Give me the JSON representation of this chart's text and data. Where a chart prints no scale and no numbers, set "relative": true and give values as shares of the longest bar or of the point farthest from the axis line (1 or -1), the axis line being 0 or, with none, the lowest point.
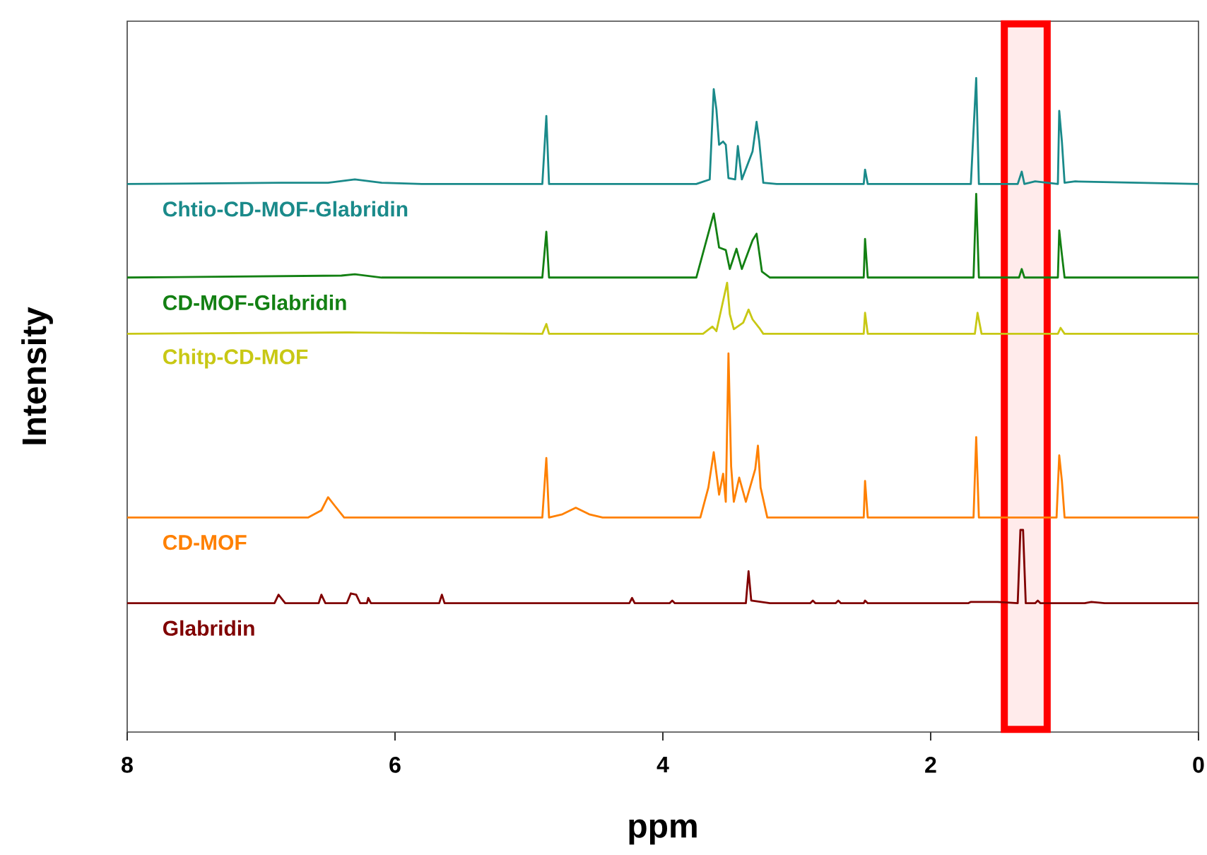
{
  "chart_data": {
    "type": "line",
    "relative": true,
    "xlabel": "ppm",
    "ylabel": "Intensity",
    "xlim": [
      8,
      0
    ],
    "xticks": [
      8,
      6,
      4,
      2,
      0
    ],
    "bands": [
      {
        "axis": "x",
        "from": 1.45,
        "to": 1.13,
        "color": "#ff0000"
      }
    ],
    "series": [
      {
        "name": "Chtio-CD-MOF-Glabridin",
        "color": "#1a8a8a",
        "x": [
          8.0,
          6.85,
          6.5,
          6.3,
          6.1,
          5.8,
          4.9,
          4.87,
          4.85,
          3.75,
          3.65,
          3.62,
          3.6,
          3.58,
          3.55,
          3.53,
          3.51,
          3.46,
          3.44,
          3.41,
          3.33,
          3.3,
          3.28,
          3.25,
          3.15,
          2.5,
          2.49,
          2.47,
          1.7,
          1.66,
          1.64,
          1.35,
          1.32,
          1.3,
          1.22,
          1.05,
          1.04,
          1.02,
          1.0,
          0.92,
          0.0
        ],
        "values": [
          0.838,
          0.84,
          0.84,
          0.845,
          0.84,
          0.838,
          0.838,
          0.942,
          0.838,
          0.838,
          0.845,
          0.983,
          0.952,
          0.898,
          0.903,
          0.898,
          0.847,
          0.845,
          0.896,
          0.845,
          0.888,
          0.933,
          0.903,
          0.84,
          0.838,
          0.838,
          0.86,
          0.838,
          0.838,
          1.0,
          0.838,
          0.838,
          0.857,
          0.838,
          0.842,
          0.838,
          0.95,
          0.903,
          0.84,
          0.842,
          0.838
        ]
      },
      {
        "name": "CD-MOF-Glabridin",
        "color": "#138013",
        "x": [
          8.0,
          6.4,
          6.3,
          6.1,
          4.9,
          4.87,
          4.85,
          3.75,
          3.62,
          3.58,
          3.53,
          3.5,
          3.45,
          3.41,
          3.33,
          3.3,
          3.26,
          3.2,
          2.5,
          2.49,
          2.47,
          1.68,
          1.66,
          1.64,
          1.34,
          1.32,
          1.3,
          1.05,
          1.04,
          1.02,
          1.0,
          0.0
        ],
        "values": [
          0.695,
          0.698,
          0.7,
          0.695,
          0.695,
          0.765,
          0.695,
          0.695,
          0.793,
          0.741,
          0.737,
          0.708,
          0.739,
          0.708,
          0.752,
          0.762,
          0.704,
          0.695,
          0.695,
          0.754,
          0.695,
          0.695,
          0.823,
          0.695,
          0.695,
          0.708,
          0.695,
          0.695,
          0.767,
          0.73,
          0.695,
          0.695
        ]
      },
      {
        "name": "Chitp-CD-MOF",
        "color": "#c8c814",
        "x": [
          8.0,
          6.35,
          4.9,
          4.87,
          4.85,
          3.7,
          3.63,
          3.6,
          3.52,
          3.5,
          3.47,
          3.4,
          3.36,
          3.33,
          3.28,
          3.25,
          2.5,
          2.49,
          2.47,
          1.67,
          1.65,
          1.62,
          1.05,
          1.03,
          1.0,
          0.0
        ],
        "values": [
          0.609,
          0.611,
          0.609,
          0.624,
          0.609,
          0.609,
          0.62,
          0.613,
          0.687,
          0.639,
          0.616,
          0.626,
          0.646,
          0.631,
          0.618,
          0.609,
          0.609,
          0.641,
          0.609,
          0.609,
          0.641,
          0.609,
          0.609,
          0.618,
          0.609,
          0.609
        ]
      },
      {
        "name": "CD-MOF",
        "color": "#ff8000",
        "x": [
          8.0,
          6.65,
          6.55,
          6.5,
          6.45,
          6.38,
          4.9,
          4.87,
          4.85,
          4.75,
          4.65,
          4.55,
          4.45,
          3.72,
          3.66,
          3.62,
          3.58,
          3.55,
          3.53,
          3.51,
          3.49,
          3.47,
          3.43,
          3.38,
          3.31,
          3.29,
          3.27,
          3.22,
          2.5,
          2.49,
          2.47,
          1.68,
          1.66,
          1.64,
          1.06,
          1.04,
          1.02,
          1.0,
          0.0
        ],
        "values": [
          0.328,
          0.328,
          0.339,
          0.359,
          0.346,
          0.328,
          0.328,
          0.419,
          0.328,
          0.333,
          0.343,
          0.333,
          0.328,
          0.328,
          0.374,
          0.428,
          0.363,
          0.395,
          0.352,
          0.579,
          0.406,
          0.352,
          0.389,
          0.352,
          0.402,
          0.438,
          0.374,
          0.328,
          0.328,
          0.384,
          0.328,
          0.328,
          0.451,
          0.328,
          0.328,
          0.423,
          0.384,
          0.328,
          0.328
        ]
      },
      {
        "name": "Glabridin",
        "color": "#800000",
        "x": [
          8.0,
          6.9,
          6.87,
          6.82,
          6.57,
          6.55,
          6.52,
          6.36,
          6.33,
          6.29,
          6.26,
          6.21,
          6.2,
          6.18,
          5.67,
          5.65,
          5.63,
          4.25,
          4.23,
          4.21,
          3.95,
          3.93,
          3.91,
          3.38,
          3.36,
          3.34,
          3.2,
          2.9,
          2.88,
          2.86,
          2.71,
          2.69,
          2.67,
          2.5,
          2.49,
          2.47,
          1.72,
          1.7,
          1.5,
          1.35,
          1.33,
          1.31,
          1.29,
          1.22,
          1.2,
          1.18,
          0.85,
          0.8,
          0.7,
          0.0
        ],
        "values": [
          0.197,
          0.197,
          0.21,
          0.197,
          0.197,
          0.21,
          0.197,
          0.197,
          0.212,
          0.21,
          0.197,
          0.197,
          0.205,
          0.197,
          0.197,
          0.21,
          0.197,
          0.197,
          0.205,
          0.197,
          0.197,
          0.201,
          0.197,
          0.197,
          0.246,
          0.201,
          0.197,
          0.197,
          0.201,
          0.197,
          0.197,
          0.201,
          0.197,
          0.197,
          0.201,
          0.197,
          0.197,
          0.199,
          0.199,
          0.197,
          0.309,
          0.309,
          0.197,
          0.197,
          0.201,
          0.197,
          0.197,
          0.199,
          0.197,
          0.197
        ]
      }
    ]
  }
}
